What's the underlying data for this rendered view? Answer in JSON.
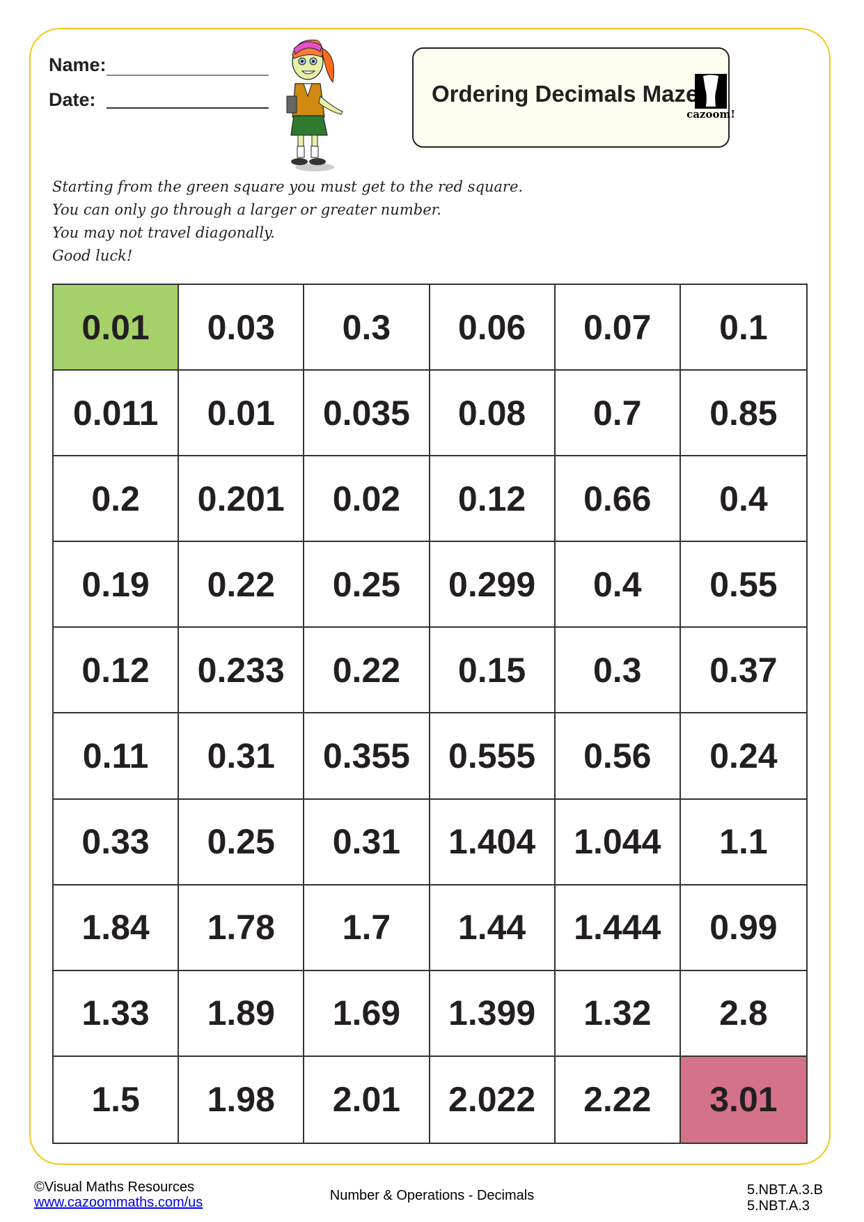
{
  "header": {
    "name_label": "Name:",
    "date_label": "Date:",
    "title": "Ordering Decimals Maze",
    "logo_text": "cazoom!",
    "mascot": "girl-character-illustration"
  },
  "instructions": [
    "Starting from the green square you must get to the red square.",
    "You can only go through a larger or greater number.",
    "You may not travel diagonally.",
    "Good luck!"
  ],
  "maze": {
    "start_color": "#A5D16A",
    "end_color": "#D4728A",
    "start_cell": [
      0,
      0
    ],
    "end_cell": [
      9,
      5
    ],
    "rows": [
      [
        "0.01",
        "0.03",
        "0.3",
        "0.06",
        "0.07",
        "0.1"
      ],
      [
        "0.011",
        "0.01",
        "0.035",
        "0.08",
        "0.7",
        "0.85"
      ],
      [
        "0.2",
        "0.201",
        "0.02",
        "0.12",
        "0.66",
        "0.4"
      ],
      [
        "0.19",
        "0.22",
        "0.25",
        "0.299",
        "0.4",
        "0.55"
      ],
      [
        "0.12",
        "0.233",
        "0.22",
        "0.15",
        "0.3",
        "0.37"
      ],
      [
        "0.11",
        "0.31",
        "0.355",
        "0.555",
        "0.56",
        "0.24"
      ],
      [
        "0.33",
        "0.25",
        "0.31",
        "1.404",
        "1.044",
        "1.1"
      ],
      [
        "1.84",
        "1.78",
        "1.7",
        "1.44",
        "1.444",
        "0.99"
      ],
      [
        "1.33",
        "1.89",
        "1.69",
        "1.399",
        "1.32",
        "2.8"
      ],
      [
        "1.5",
        "1.98",
        "2.01",
        "2.022",
        "2.22",
        "3.01"
      ]
    ]
  },
  "footer": {
    "copyright": "©Visual Maths Resources",
    "link": "www.cazoommaths.com/us",
    "topic": "Number & Operations - Decimals",
    "standards": [
      "5.NBT.A.3.B",
      "5.NBT.A.3"
    ]
  },
  "colors": {
    "frame_border": "#F5C518",
    "title_box_bg": "#FFFCF0"
  }
}
